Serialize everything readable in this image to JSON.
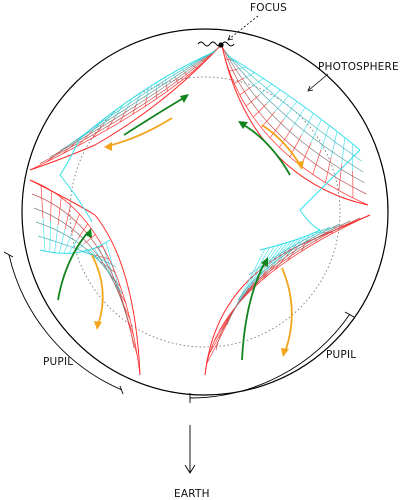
{
  "labels": {
    "focus": "FOCUS",
    "photosphere": "PHOTOSPHERE",
    "pupil_left": "PUPIL",
    "pupil_right": "PUPIL",
    "earth": "EARTH"
  },
  "colors": {
    "outline": "#000000",
    "caustic": "#ff2a2a",
    "wavefront_outer": "#35e0ea",
    "wavefront_mid": "#6f8f8f",
    "arrow_green": "#11841e",
    "arrow_orange": "#f2a51b",
    "inner_circle": "#777777"
  },
  "icons": {
    "focus_marker": "dot-icon",
    "earth_direction": "arrow-down-icon"
  }
}
